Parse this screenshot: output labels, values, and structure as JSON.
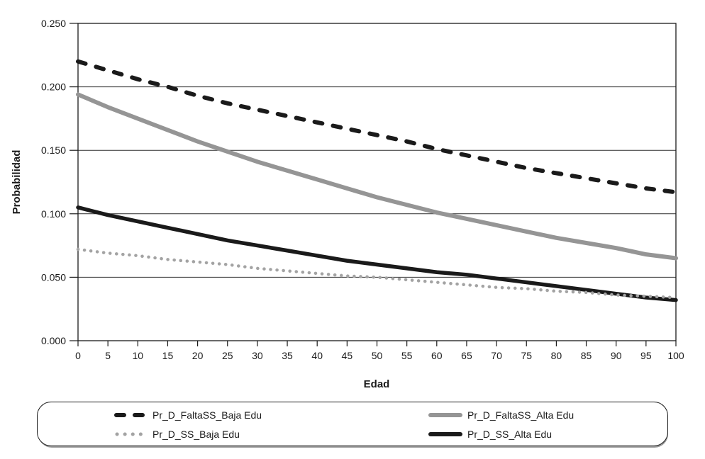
{
  "figure": {
    "background": "#ffffff",
    "text_color": "#1a1a1a"
  },
  "chart_data": {
    "type": "line",
    "title": "",
    "xlabel": "Edad",
    "ylabel": "Probabilidad",
    "grid": "horizontal",
    "legend_position": "bottom",
    "xlim": [
      0,
      100
    ],
    "ylim": [
      0,
      0.25
    ],
    "ytick_step": 0.05,
    "ytick_labels": [
      "0.000",
      "0.050",
      "0.100",
      "0.150",
      "0.200",
      "0.250"
    ],
    "xtick_labels": [
      "0",
      "5",
      "10",
      "15",
      "20",
      "25",
      "30",
      "35",
      "40",
      "45",
      "50",
      "55",
      "60",
      "65",
      "70",
      "75",
      "80",
      "85",
      "90",
      "95",
      "100"
    ],
    "x": [
      0,
      5,
      10,
      15,
      20,
      25,
      30,
      35,
      40,
      45,
      50,
      55,
      60,
      65,
      70,
      75,
      80,
      85,
      90,
      95,
      100
    ],
    "series": [
      {
        "name": "Pr_D_FaltaSS_Baja Edu",
        "style": "dashed",
        "color": "#1a1a1a",
        "width": 6,
        "values": [
          0.22,
          0.213,
          0.206,
          0.2,
          0.193,
          0.187,
          0.182,
          0.177,
          0.172,
          0.167,
          0.162,
          0.157,
          0.151,
          0.146,
          0.141,
          0.136,
          0.132,
          0.128,
          0.124,
          0.12,
          0.117
        ]
      },
      {
        "name": "Pr_D_FaltaSS_Alta Edu",
        "style": "solid",
        "color": "#959595",
        "width": 6,
        "values": [
          0.194,
          0.184,
          0.175,
          0.166,
          0.157,
          0.149,
          0.141,
          0.134,
          0.127,
          0.12,
          0.113,
          0.107,
          0.101,
          0.096,
          0.091,
          0.086,
          0.081,
          0.077,
          0.073,
          0.068,
          0.065
        ]
      },
      {
        "name": "Pr_D_SS_Baja Edu",
        "style": "dotted",
        "color": "#a3a3a3",
        "width": 4.5,
        "values": [
          0.072,
          0.069,
          0.067,
          0.064,
          0.062,
          0.06,
          0.057,
          0.055,
          0.053,
          0.051,
          0.05,
          0.048,
          0.046,
          0.044,
          0.042,
          0.041,
          0.039,
          0.038,
          0.036,
          0.035,
          0.034
        ]
      },
      {
        "name": "Pr_D_SS_Alta Edu",
        "style": "solid",
        "color": "#1a1a1a",
        "width": 5.5,
        "values": [
          0.105,
          0.099,
          0.094,
          0.089,
          0.084,
          0.079,
          0.075,
          0.071,
          0.067,
          0.063,
          0.06,
          0.057,
          0.054,
          0.052,
          0.049,
          0.046,
          0.043,
          0.04,
          0.037,
          0.034,
          0.032
        ]
      }
    ]
  }
}
